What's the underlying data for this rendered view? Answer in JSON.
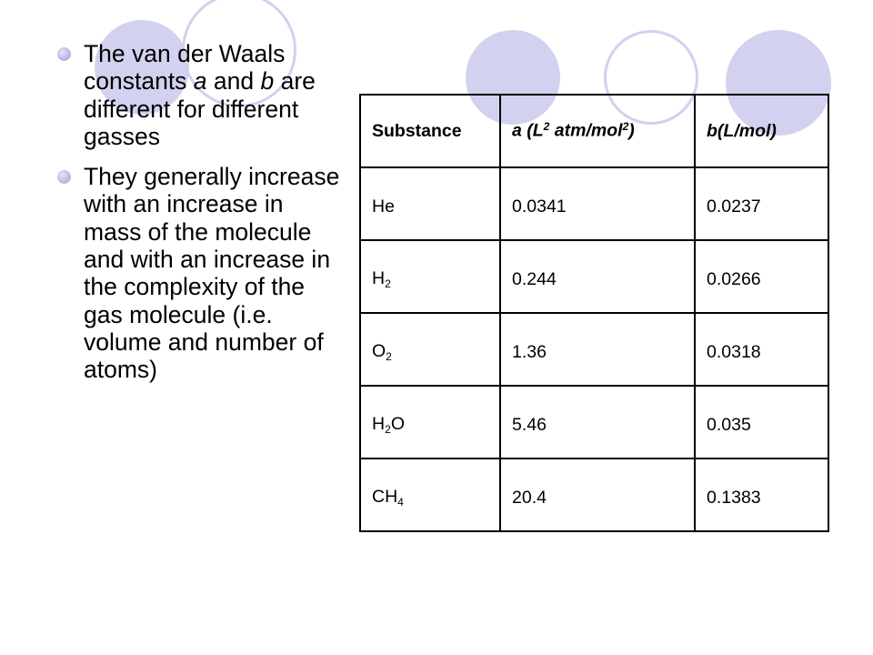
{
  "colors": {
    "background": "#ffffff",
    "decor_circle": "#d2d1ef",
    "bullet_dot": "#bdbbe6",
    "text": "#000000",
    "table_border": "#000000"
  },
  "decorations": {
    "icon": "decorative-circles"
  },
  "bullets": [
    {
      "icon": "bullet-dot",
      "p1": "The van der Waals constants ",
      "var_a": "a",
      "p2": " and ",
      "var_b": "b",
      "p3": " are different for different gasses"
    },
    {
      "icon": "bullet-dot",
      "text": "They generally increase with an increase in mass of the molecule and with an increase in the complexity of the gas molecule (i.e. volume and number of atoms)"
    }
  ],
  "table": {
    "headers": {
      "substance": "Substance",
      "a_base": "a (L",
      "a_sup1": "2",
      "a_mid": " atm/mol",
      "a_sup2": "2",
      "a_end": ")",
      "b": "b(L/mol)"
    },
    "rows": [
      {
        "sub_base": "He",
        "sub_script": "",
        "sub_tail": "",
        "a": "0.0341",
        "b": "0.0237"
      },
      {
        "sub_base": "H",
        "sub_script": "2",
        "sub_tail": "",
        "a": "0.244",
        "b": "0.0266"
      },
      {
        "sub_base": "O",
        "sub_script": "2",
        "sub_tail": "",
        "a": "1.36",
        "b": "0.0318"
      },
      {
        "sub_base": "H",
        "sub_script": "2",
        "sub_tail": "O",
        "a": "5.46",
        "b": "0.035"
      },
      {
        "sub_base": "CH",
        "sub_script": "4",
        "sub_tail": "",
        "a": "20.4",
        "b": "0.1383"
      }
    ]
  }
}
